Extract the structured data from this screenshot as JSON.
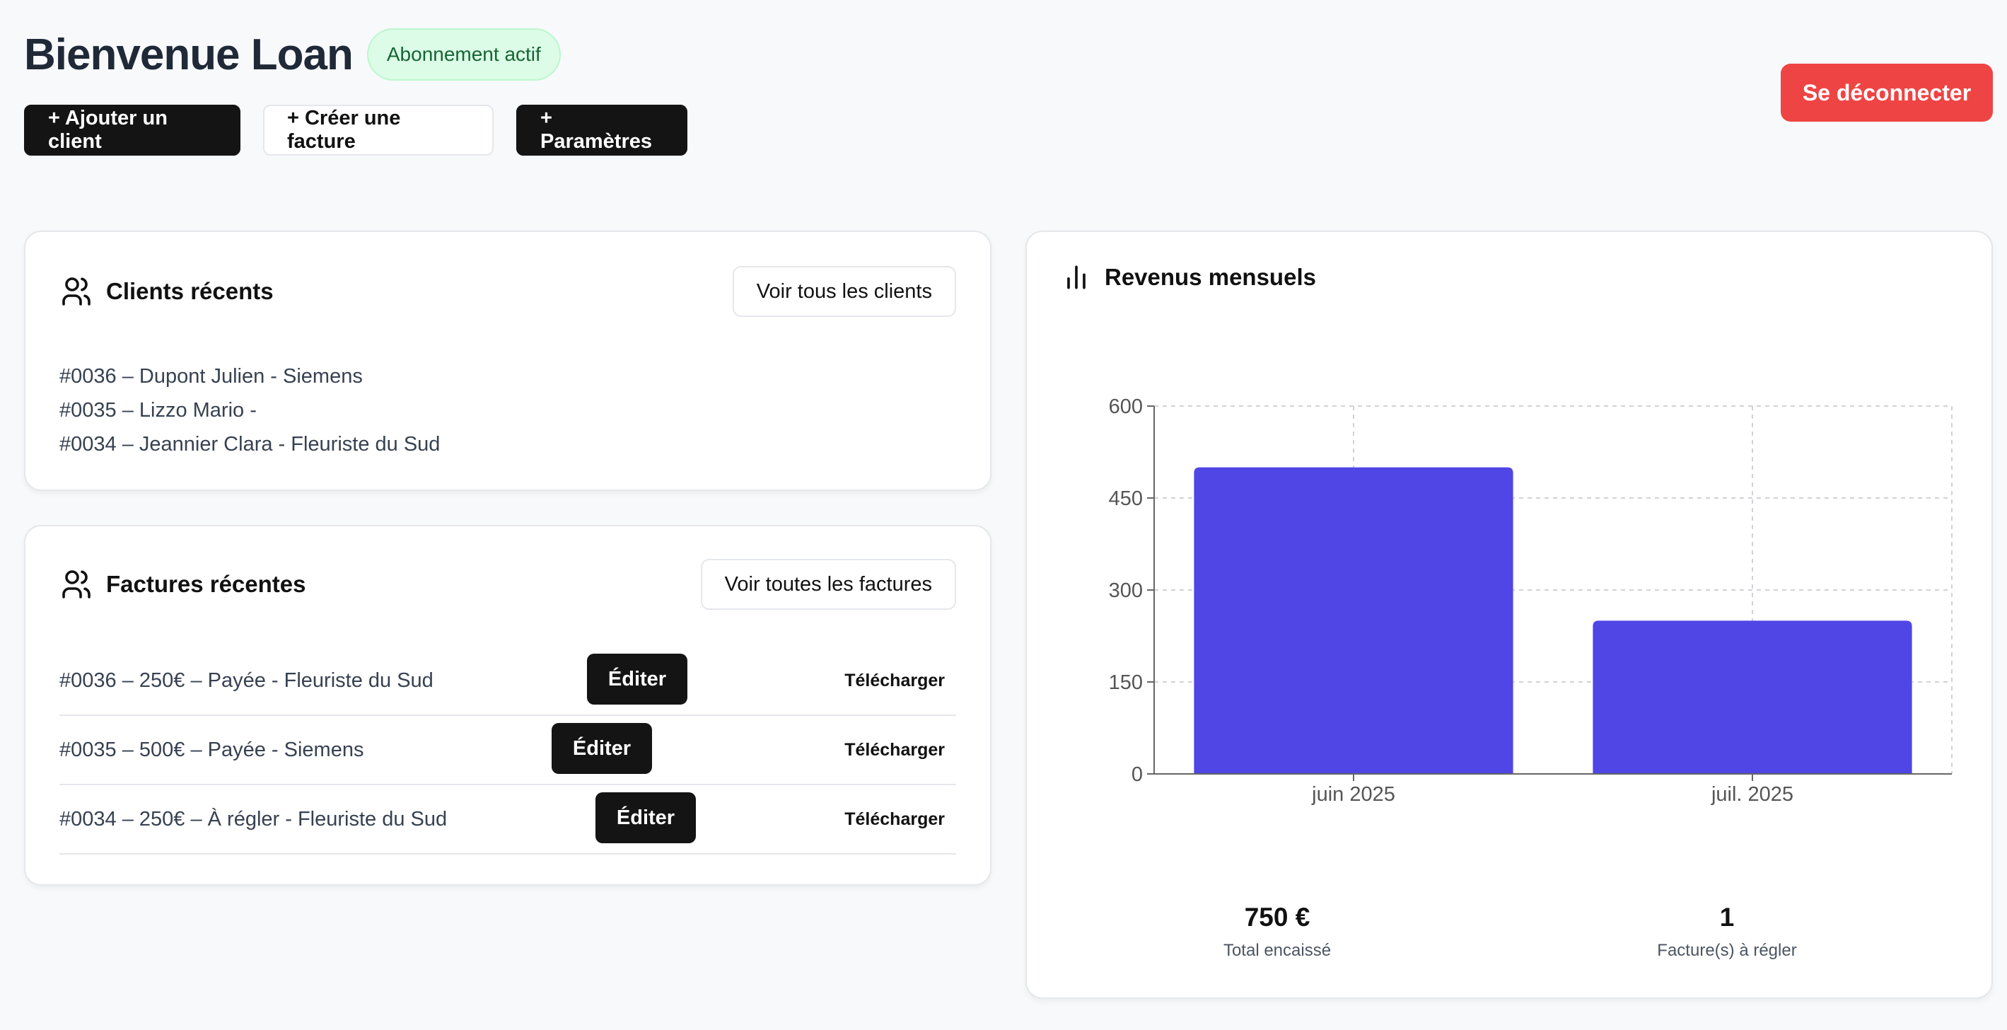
{
  "header": {
    "title": "Bienvenue Loan",
    "badge": "Abonnement actif",
    "actions": {
      "add_client": "+ Ajouter un client",
      "create_invoice": "+ Créer une facture",
      "settings": "+ Paramètres"
    },
    "logout": "Se déconnecter"
  },
  "clients": {
    "title": "Clients récents",
    "view_all": "Voir tous les clients",
    "items": [
      "#0036 – Dupont Julien - Siemens",
      "#0035 – Lizzo Mario -",
      "#0034 – Jeannier Clara - Fleuriste du Sud"
    ]
  },
  "invoices": {
    "title": "Factures récentes",
    "view_all": "Voir toutes les factures",
    "edit_label": "Éditer",
    "download_label": "Télécharger",
    "items": [
      "#0036 – 250€ – Payée - Fleuriste du Sud",
      "#0035 – 500€ – Payée - Siemens",
      "#0034 – 250€ – À régler - Fleuriste du Sud"
    ]
  },
  "revenue": {
    "title": "Revenus mensuels",
    "stats": [
      {
        "value": "750 €",
        "label": "Total encaissé"
      },
      {
        "value": "1",
        "label": "Facture(s) à régler"
      }
    ]
  },
  "colors": {
    "bar": "#4f46e5",
    "logout": "#ef4444",
    "badge_bg": "#dcfce7",
    "badge_text": "#166534"
  },
  "chart_data": {
    "type": "bar",
    "categories": [
      "juin 2025",
      "juil. 2025"
    ],
    "values": [
      500,
      250
    ],
    "yticks": [
      0,
      150,
      300,
      450,
      600
    ],
    "ylim": [
      0,
      600
    ],
    "grid": true
  }
}
